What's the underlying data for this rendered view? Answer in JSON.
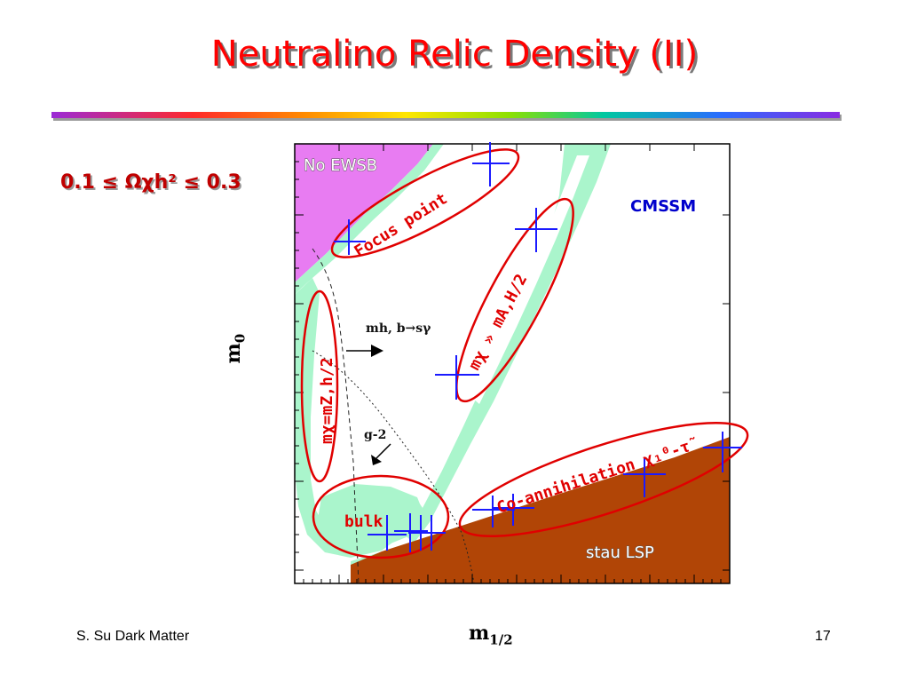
{
  "slide": {
    "title": "Neutralino Relic Density (II)",
    "constraint_label": "0.1 ≤ Ωχh² ≤ 0.3",
    "footer_left": "S. Su Dark Matter",
    "page_number": "17"
  },
  "plot": {
    "x_axis_main": "m",
    "x_axis_sub": "1/2",
    "y_axis_main": "m",
    "y_axis_sub": "0",
    "model_label": "CMSSM",
    "regions": {
      "no_ewsb": "No EWSB",
      "stau_lsp": "stau LSP"
    },
    "annotations": {
      "focus_point": "Focus point",
      "higgs_funnel": "mχ » mA,H/2",
      "z_h_pole": "mχ=mZ,h/2",
      "bulk": "bulk",
      "coannihilation": "Co-annihilation χ₁⁰-τ̃",
      "mh_bsg": "mh, b→sγ",
      "g_minus_2": "g-2"
    },
    "colors": {
      "no_ewsb": "#e87cf2",
      "stau_lsp": "#b14506",
      "allowed_band": "#aaf5cc",
      "ellipse": "#e00000",
      "marker": "#1a1aff",
      "label_red": "#e00000",
      "label_blue": "#0000cc"
    }
  }
}
